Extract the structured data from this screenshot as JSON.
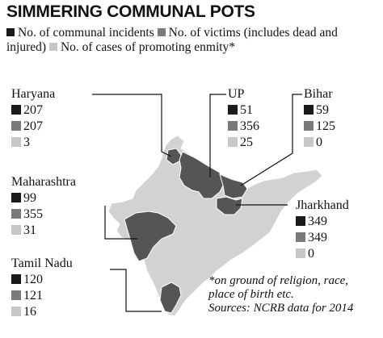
{
  "title": "SIMMERING COMMUNAL POTS",
  "legend": {
    "items": [
      {
        "label": "No. of communal incidents",
        "color": "#1a1a1a"
      },
      {
        "label": "No. of victims (includes dead and injured)",
        "color": "#7a7a7a"
      },
      {
        "label": "No. of cases of promoting enmity*",
        "color": "#c7c7c7"
      }
    ]
  },
  "colors": {
    "highlighted_state": "#555555",
    "base_map": "#d2d2d2",
    "border_lines": "#ffffff",
    "leader_lines": "#111111"
  },
  "states": [
    {
      "name": "Haryana",
      "values": {
        "incidents": "207",
        "victims": "207",
        "enmity": "3"
      }
    },
    {
      "name": "UP",
      "values": {
        "incidents": "51",
        "victims": "356",
        "enmity": "25"
      }
    },
    {
      "name": "Bihar",
      "values": {
        "incidents": "59",
        "victims": "125",
        "enmity": "0"
      }
    },
    {
      "name": "Maharashtra",
      "values": {
        "incidents": "99",
        "victims": "355",
        "enmity": "31"
      }
    },
    {
      "name": "Jharkhand",
      "values": {
        "incidents": "349",
        "victims": "349",
        "enmity": "0"
      }
    },
    {
      "name": "Tamil Nadu",
      "values": {
        "incidents": "120",
        "victims": "121",
        "enmity": "16"
      }
    }
  ],
  "note": {
    "lines": [
      "*on ground of religion, race,",
      "place of birth etc."
    ],
    "source": "Sources: NCRB data for 2014"
  }
}
